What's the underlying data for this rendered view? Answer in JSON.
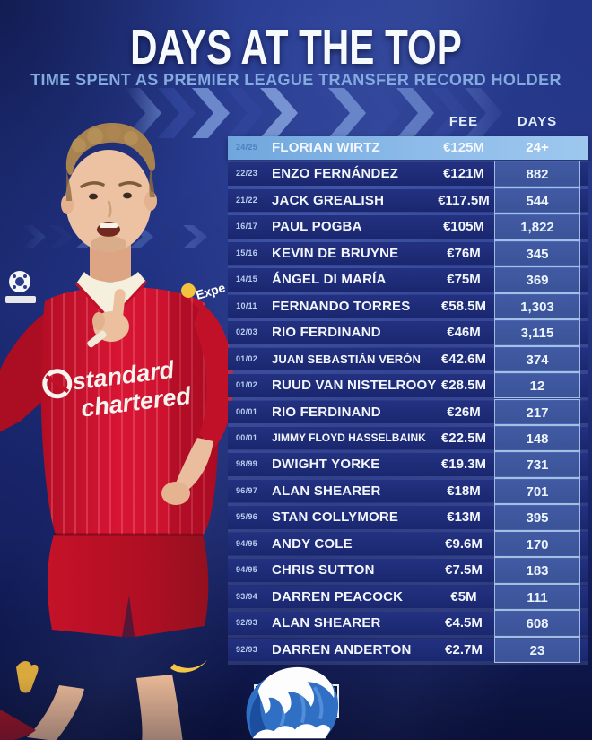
{
  "chart_data": {
    "type": "table",
    "title": "DAYS AT THE TOP",
    "subtitle": "TIME SPENT AS PREMIER LEAGUE TRANSFER RECORD HOLDER",
    "columns": [
      "FEE",
      "DAYS"
    ],
    "highlighted_row": 0,
    "rows": [
      {
        "season": "24/25",
        "player": "FLORIAN WIRTZ",
        "fee": "€125M",
        "days": "24+",
        "highlight": true
      },
      {
        "season": "22/23",
        "player": "ENZO FERNÁNDEZ",
        "fee": "€121M",
        "days": "882"
      },
      {
        "season": "21/22",
        "player": "JACK GREALISH",
        "fee": "€117.5M",
        "days": "544"
      },
      {
        "season": "16/17",
        "player": "PAUL POGBA",
        "fee": "€105M",
        "days": "1,822"
      },
      {
        "season": "15/16",
        "player": "KEVIN DE BRUYNE",
        "fee": "€76M",
        "days": "345"
      },
      {
        "season": "14/15",
        "player": "ÁNGEL DI MARÍA",
        "fee": "€75M",
        "days": "369"
      },
      {
        "season": "10/11",
        "player": "FERNANDO TORRES",
        "fee": "€58.5M",
        "days": "1,303"
      },
      {
        "season": "02/03",
        "player": "RIO FERDINAND",
        "fee": "€46M",
        "days": "3,115"
      },
      {
        "season": "01/02",
        "player": "JUAN SEBASTIÁN VERÓN",
        "fee": "€42.6M",
        "days": "374"
      },
      {
        "season": "01/02",
        "player": "RUUD VAN NISTELROOY",
        "fee": "€28.5M",
        "days": "12"
      },
      {
        "season": "00/01",
        "player": "RIO FERDINAND",
        "fee": "€26M",
        "days": "217"
      },
      {
        "season": "00/01",
        "player": "JIMMY FLOYD HASSELBAINK",
        "fee": "€22.5M",
        "days": "148"
      },
      {
        "season": "98/99",
        "player": "DWIGHT YORKE",
        "fee": "€19.3M",
        "days": "731"
      },
      {
        "season": "96/97",
        "player": "ALAN SHEARER",
        "fee": "€18M",
        "days": "701"
      },
      {
        "season": "95/96",
        "player": "STAN COLLYMORE",
        "fee": "€13M",
        "days": "395"
      },
      {
        "season": "94/95",
        "player": "ANDY COLE",
        "fee": "€9.6M",
        "days": "170"
      },
      {
        "season": "94/95",
        "player": "CHRIS SUTTON",
        "fee": "€7.5M",
        "days": "183"
      },
      {
        "season": "93/94",
        "player": "DARREN PEACOCK",
        "fee": "€5M",
        "days": "111"
      },
      {
        "season": "92/93",
        "player": "ALAN SHEARER",
        "fee": "€4.5M",
        "days": "608"
      },
      {
        "season": "92/93",
        "player": "DARREN ANDERTON",
        "fee": "€2.7M",
        "days": "23"
      }
    ]
  },
  "player_photo": {
    "shirt_line1": "standard",
    "shirt_line2": "chartered",
    "sleeve_text": "Expe"
  },
  "colors": {
    "background_blue": "#223384",
    "row_navy": "#1c2a74",
    "highlight_blue": "#8ebcea",
    "days_cell_border": "#bcd9f6",
    "subtitle_blue": "#84abdf",
    "shirt_red": "#cc1128",
    "accent_yellow": "#f2c33d",
    "wave_blue": "#2f6fc4"
  }
}
